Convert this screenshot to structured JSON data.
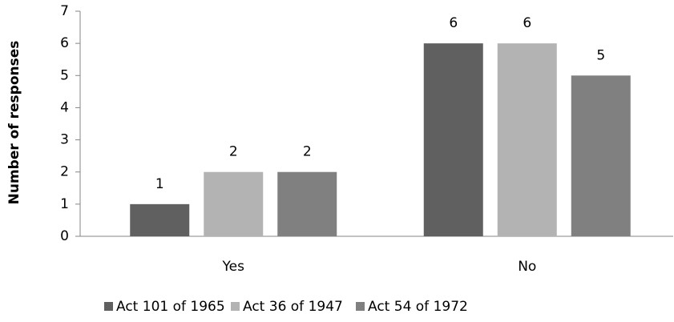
{
  "chart_data": {
    "type": "bar",
    "y_label": "Number of responses",
    "categories": [
      "Yes",
      "No"
    ],
    "series": [
      {
        "name": "Act 101 of 1965",
        "color": "#606060",
        "values": [
          1,
          6
        ]
      },
      {
        "name": "Act 36 of 1947",
        "color": "#b3b3b3",
        "values": [
          2,
          6
        ]
      },
      {
        "name": "Act 54 of 1972",
        "color": "#808080",
        "values": [
          2,
          5
        ]
      }
    ],
    "ylim": [
      0,
      7
    ],
    "yticks": [
      0,
      1,
      2,
      3,
      4,
      5,
      6,
      7
    ],
    "grid": false,
    "data_labels": true,
    "legend": "bottom"
  }
}
